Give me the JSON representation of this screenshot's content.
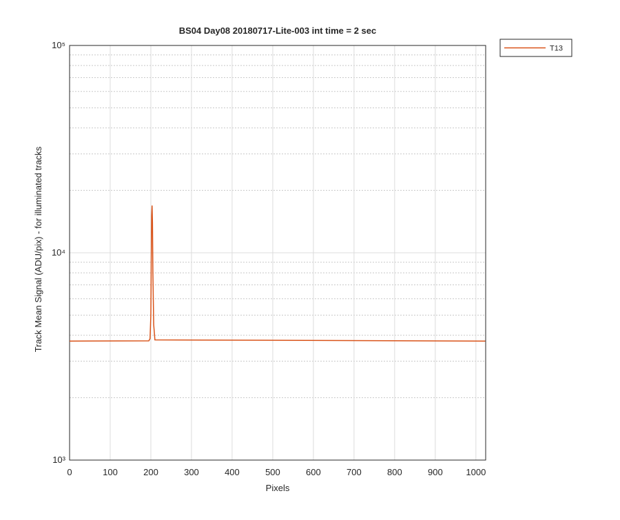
{
  "chart_data": {
    "type": "line",
    "title": "BS04 Day08 20180717-Lite-003 int time = 2 sec",
    "xlabel": "Pixels",
    "ylabel": "Track Mean Signal (ADU/pix) - for illuminated tracks",
    "x": [
      0,
      195,
      198,
      200,
      201,
      202,
      203,
      204,
      205,
      207,
      210,
      1023
    ],
    "series": [
      {
        "name": "T13",
        "color": "#d95319",
        "values": [
          3750,
          3760,
          3850,
          5000,
          9000,
          15000,
          16900,
          14000,
          8000,
          4500,
          3800,
          3750
        ]
      }
    ],
    "xlim": [
      0,
      1024
    ],
    "xticks": [
      0,
      100,
      200,
      300,
      400,
      500,
      600,
      700,
      800,
      900,
      1000
    ],
    "ylim": [
      1000,
      100000
    ],
    "yscale": "log",
    "yticks": [
      {
        "value": 1000,
        "label": "10³"
      },
      {
        "value": 10000,
        "label": "10⁴"
      },
      {
        "value": 100000,
        "label": "10⁵"
      }
    ],
    "yminorticks": [
      2000,
      3000,
      4000,
      5000,
      6000,
      7000,
      8000,
      9000,
      20000,
      30000,
      40000,
      50000,
      60000,
      70000,
      80000,
      90000
    ],
    "grid": true,
    "legend": "outside-top-right"
  }
}
